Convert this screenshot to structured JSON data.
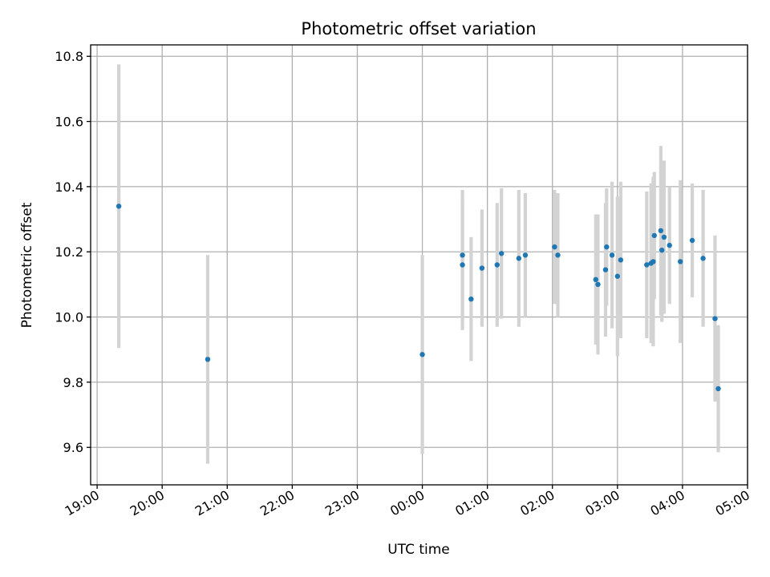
{
  "chart_data": {
    "type": "scatter",
    "title": "Photometric offset variation",
    "xlabel": "UTC time",
    "ylabel": "Photometric offset",
    "xlim": [
      "18:54",
      "05:00"
    ],
    "ylim": [
      9.485,
      10.835
    ],
    "grid": true,
    "x_ticks": [
      "19:00",
      "20:00",
      "21:00",
      "22:00",
      "23:00",
      "00:00",
      "01:00",
      "02:00",
      "03:00",
      "04:00",
      "05:00"
    ],
    "y_ticks": [
      9.6,
      9.8,
      10.0,
      10.2,
      10.4,
      10.6,
      10.8
    ],
    "colors": {
      "points": "#1f77b4",
      "errorbars": "#d3d3d3"
    },
    "series": [
      {
        "points": [
          {
            "t": "19:20",
            "y": 10.34,
            "err": 0.435
          },
          {
            "t": "20:42",
            "y": 9.87,
            "err": 0.32
          },
          {
            "t": "00:00",
            "y": 9.885,
            "err": 0.305
          },
          {
            "t": "00:37",
            "y": 10.19,
            "err": 0.2
          },
          {
            "t": "00:37",
            "y": 10.16,
            "err": 0.2
          },
          {
            "t": "00:45",
            "y": 10.055,
            "err": 0.19
          },
          {
            "t": "00:55",
            "y": 10.15,
            "err": 0.18
          },
          {
            "t": "01:09",
            "y": 10.16,
            "err": 0.19
          },
          {
            "t": "01:13",
            "y": 10.195,
            "err": 0.2
          },
          {
            "t": "01:29",
            "y": 10.18,
            "err": 0.21
          },
          {
            "t": "01:35",
            "y": 10.19,
            "err": 0.19
          },
          {
            "t": "02:02",
            "y": 10.215,
            "err": 0.175
          },
          {
            "t": "02:05",
            "y": 10.19,
            "err": 0.19
          },
          {
            "t": "02:40",
            "y": 10.115,
            "err": 0.2
          },
          {
            "t": "02:42",
            "y": 10.1,
            "err": 0.215
          },
          {
            "t": "02:49",
            "y": 10.145,
            "err": 0.205
          },
          {
            "t": "02:50",
            "y": 10.215,
            "err": 0.18
          },
          {
            "t": "02:55",
            "y": 10.19,
            "err": 0.225
          },
          {
            "t": "03:00",
            "y": 10.125,
            "err": 0.245
          },
          {
            "t": "03:03",
            "y": 10.175,
            "err": 0.24
          },
          {
            "t": "03:27",
            "y": 10.16,
            "err": 0.225
          },
          {
            "t": "03:31",
            "y": 10.165,
            "err": 0.245
          },
          {
            "t": "03:33",
            "y": 10.17,
            "err": 0.26
          },
          {
            "t": "03:34",
            "y": 10.25,
            "err": 0.195
          },
          {
            "t": "03:40",
            "y": 10.265,
            "err": 0.26
          },
          {
            "t": "03:41",
            "y": 10.205,
            "err": 0.22
          },
          {
            "t": "03:43",
            "y": 10.245,
            "err": 0.235
          },
          {
            "t": "03:48",
            "y": 10.22,
            "err": 0.18
          },
          {
            "t": "03:58",
            "y": 10.17,
            "err": 0.25
          },
          {
            "t": "04:09",
            "y": 10.235,
            "err": 0.175
          },
          {
            "t": "04:19",
            "y": 10.18,
            "err": 0.21
          },
          {
            "t": "04:30",
            "y": 9.995,
            "err": 0.255
          },
          {
            "t": "04:33",
            "y": 9.78,
            "err": 0.195
          }
        ]
      }
    ]
  }
}
